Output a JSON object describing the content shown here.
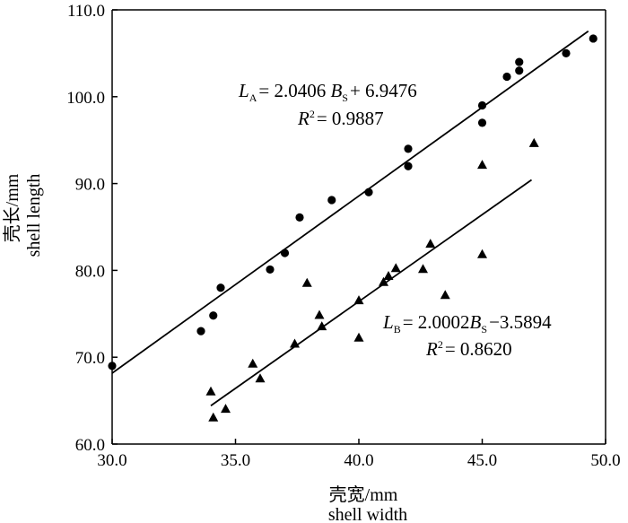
{
  "chart_data": {
    "type": "scatter",
    "xlabel_cn": "壳宽/mm",
    "xlabel_en": "shell width",
    "ylabel_cn": "壳长/mm",
    "ylabel_en": "shell length",
    "xlim": [
      30.0,
      50.0
    ],
    "ylim": [
      60.0,
      110.0
    ],
    "x_ticks": [
      "30.0",
      "35.0",
      "40.0",
      "45.0",
      "50.0"
    ],
    "y_ticks": [
      "60.0",
      "70.0",
      "80.0",
      "90.0",
      "100.0",
      "110.0"
    ],
    "grid": false,
    "series": [
      {
        "marker": "circle",
        "points": [
          [
            30.0,
            69.0
          ],
          [
            33.6,
            73.0
          ],
          [
            34.1,
            74.8
          ],
          [
            34.4,
            78.0
          ],
          [
            36.4,
            80.1
          ],
          [
            37.0,
            82.0
          ],
          [
            37.6,
            86.1
          ],
          [
            38.9,
            88.1
          ],
          [
            40.4,
            89.0
          ],
          [
            42.0,
            94.0
          ],
          [
            42.0,
            92.0
          ],
          [
            45.0,
            99.0
          ],
          [
            45.0,
            97.0
          ],
          [
            46.0,
            102.3
          ],
          [
            46.5,
            104.0
          ],
          [
            46.5,
            103.0
          ],
          [
            48.4,
            105.0
          ],
          [
            49.5,
            106.7
          ]
        ],
        "fit": {
          "slope": 2.0406,
          "intercept": 6.9476,
          "x_range": [
            30.0,
            49.3
          ]
        },
        "equation": {
          "lhs": "L",
          "lhs_sub": "A",
          "rhs1": "= 2.0406 ",
          "var": "B",
          "var_sub": "S",
          "rhs2": "+ 6.9476"
        },
        "r2": {
          "label": "R",
          "sup": "2",
          "value": "= 0.9887"
        }
      },
      {
        "marker": "triangle",
        "points": [
          [
            34.0,
            66.0
          ],
          [
            34.1,
            63.0
          ],
          [
            34.6,
            64.0
          ],
          [
            35.7,
            69.2
          ],
          [
            36.0,
            67.5
          ],
          [
            37.4,
            71.5
          ],
          [
            37.9,
            78.5
          ],
          [
            38.4,
            74.8
          ],
          [
            38.5,
            73.5
          ],
          [
            40.0,
            72.2
          ],
          [
            40.0,
            76.5
          ],
          [
            41.0,
            78.6
          ],
          [
            41.2,
            79.3
          ],
          [
            41.5,
            80.2
          ],
          [
            42.6,
            80.1
          ],
          [
            42.9,
            83.0
          ],
          [
            43.5,
            77.1
          ],
          [
            45.0,
            92.1
          ],
          [
            45.0,
            81.8
          ],
          [
            47.1,
            94.6
          ]
        ],
        "fit": {
          "slope": 2.0002,
          "intercept": -3.5894,
          "x_range": [
            34.0,
            47.0
          ]
        },
        "equation": {
          "lhs": "L",
          "lhs_sub": "B",
          "rhs1": "= 2.0002",
          "var": "B",
          "var_sub": "S",
          "rhs2": "−3.5894"
        },
        "r2": {
          "label": "R",
          "sup": "2",
          "value": "= 0.8620"
        }
      }
    ]
  }
}
